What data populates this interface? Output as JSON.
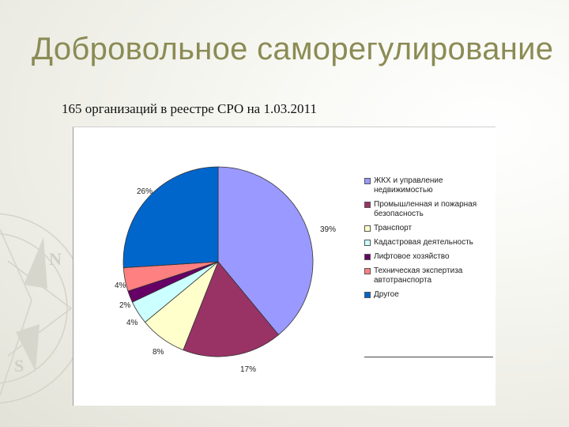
{
  "slide": {
    "title": "Добровольное саморегулирование",
    "subtitle": "165 организаций в реестре СРО на 1.03.2011"
  },
  "chart_data": {
    "type": "pie",
    "title": "",
    "legend_position": "right",
    "slices": [
      {
        "label": "ЖКХ и управление недвижимостью",
        "value": 39,
        "display": "39%",
        "color": "#9999ff"
      },
      {
        "label": "Промышленная и пожарная безопасность",
        "value": 17,
        "display": "17%",
        "color": "#993366"
      },
      {
        "label": "Транспорт",
        "value": 8,
        "display": "8%",
        "color": "#ffffcc"
      },
      {
        "label": "Кадастровая деятельность",
        "value": 4,
        "display": "4%",
        "color": "#ccffff"
      },
      {
        "label": "Лифтовое хозяйство",
        "value": 2,
        "display": "2%",
        "color": "#660066"
      },
      {
        "label": "Техническая экспертиза автотранспорта",
        "value": 4,
        "display": "4%",
        "color": "#ff8080"
      },
      {
        "label": "Другое",
        "value": 26,
        "display": "26%",
        "color": "#0066cc"
      }
    ]
  }
}
